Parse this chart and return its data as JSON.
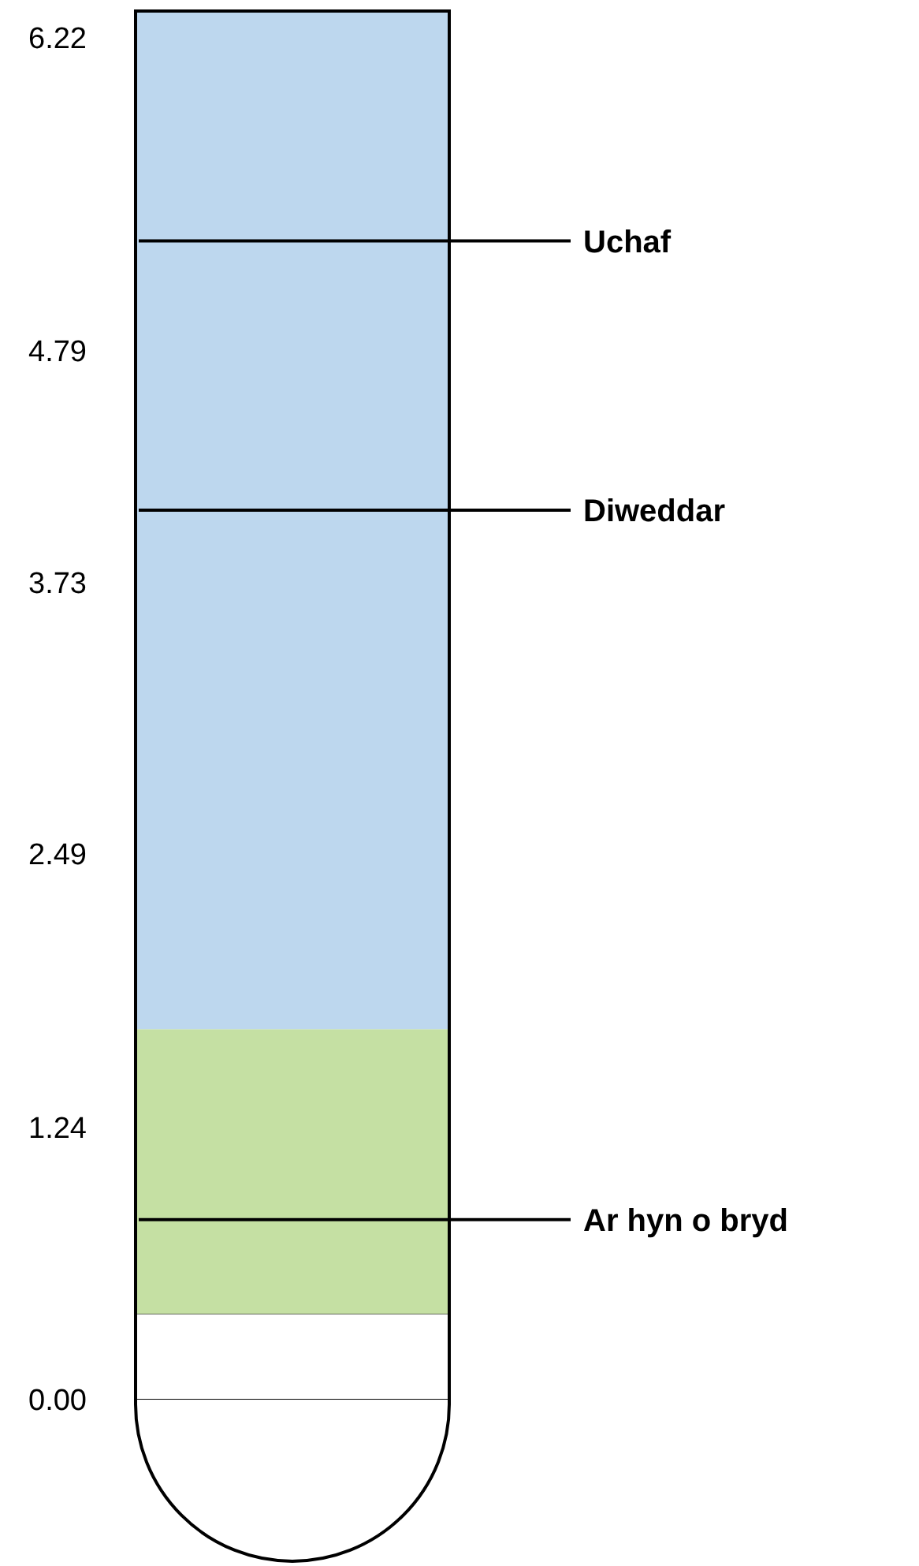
{
  "chart_data": {
    "type": "bar",
    "categories": [
      null
    ],
    "stacked": true,
    "series": [
      {
        "color": "#ffffff",
        "values": [
          0.39
        ]
      },
      {
        "color": "#c5e0a3",
        "values": [
          1.3
        ]
      },
      {
        "color": "#bdd7ee",
        "values": [
          4.65
        ]
      }
    ],
    "ylim": [
      -0.74,
      6.34
    ],
    "yticks": [
      {
        "value": 0,
        "label": "0.00"
      },
      {
        "value": 1.24,
        "label": "1.24"
      },
      {
        "value": 2.49,
        "label": "2.49"
      },
      {
        "value": 3.73,
        "label": "3.73"
      },
      {
        "value": 4.79,
        "label": "4.79"
      },
      {
        "value": 6.22,
        "label": "6.22"
      }
    ],
    "ref_lines": [
      {
        "axis": "y",
        "value": 5.29,
        "label": "Uchaf",
        "color": "#000000"
      },
      {
        "axis": "y",
        "value": 4.06,
        "label": "Diweddar",
        "color": "#000000"
      },
      {
        "axis": "y",
        "value": 0.82,
        "label": "Ar hyn o bryd",
        "color": "#000000"
      }
    ]
  }
}
